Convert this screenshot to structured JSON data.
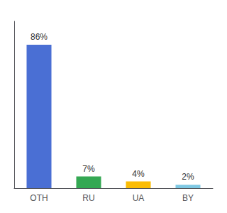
{
  "chart_data": {
    "type": "bar",
    "categories": [
      "OTH",
      "RU",
      "UA",
      "BY"
    ],
    "values": [
      86,
      7,
      4,
      2
    ],
    "value_labels": [
      "86%",
      "7%",
      "4%",
      "2%"
    ],
    "data_labels": true,
    "colors": [
      "#4A6FD4",
      "#34A853",
      "#FBBC04",
      "#7EC8E3"
    ],
    "ylim": [
      0,
      100
    ],
    "grid": false,
    "tick_labels": "x"
  }
}
